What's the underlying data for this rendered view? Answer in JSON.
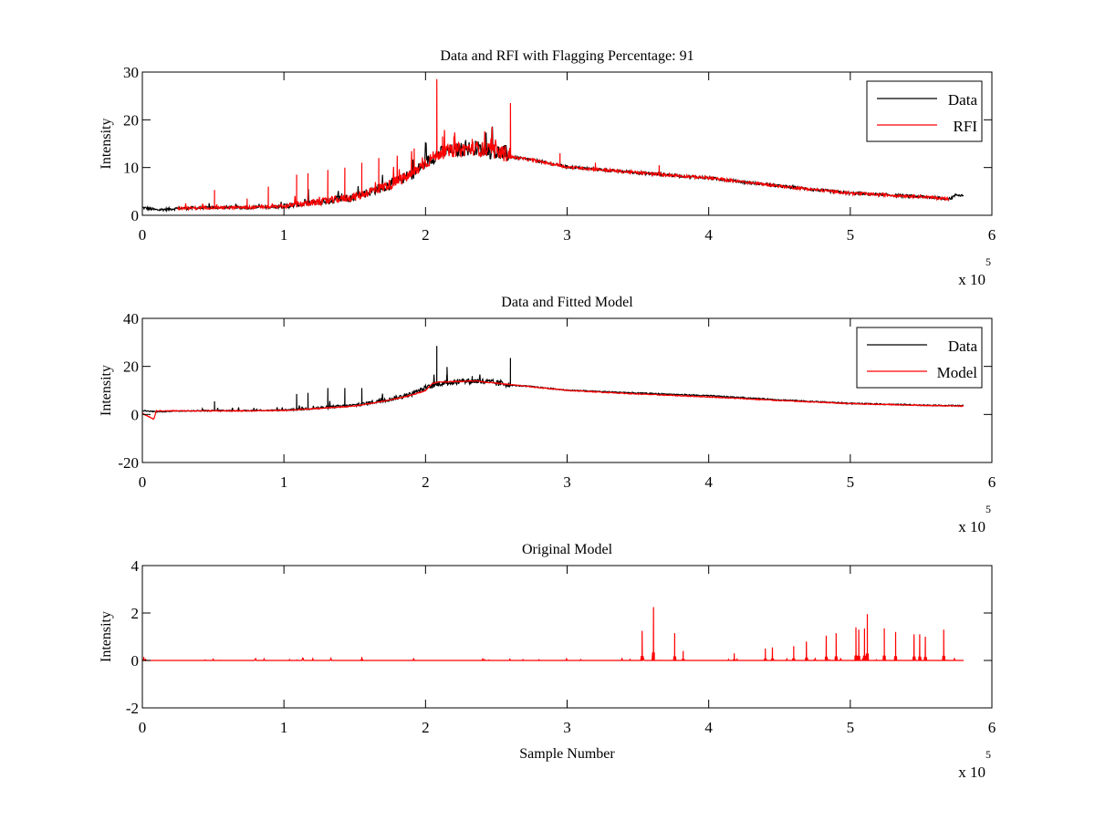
{
  "colors": {
    "data": "#000000",
    "rfi": "#ff0000",
    "model": "#ff0000",
    "axis": "#000000",
    "background": "#ffffff"
  },
  "chart_data": [
    {
      "type": "line",
      "title": "Data and RFI with Flagging Percentage: 91",
      "xlabel": "",
      "ylabel": "Intensity",
      "xlim": [
        0,
        6
      ],
      "ylim": [
        0,
        30
      ],
      "x_multiplier": "x 10",
      "x_multiplier_exp": "5",
      "xticks": [
        "0",
        "1",
        "2",
        "3",
        "4",
        "5",
        "6"
      ],
      "yticks": [
        "0",
        "10",
        "20",
        "30"
      ],
      "ytick_values": [
        0,
        10,
        20,
        30
      ],
      "legend": {
        "position": "top-right",
        "entries": [
          "Data",
          "RFI"
        ]
      },
      "series": [
        {
          "name": "Data",
          "color": "#000000",
          "x": [
            0,
            0.1,
            0.25,
            0.5,
            0.75,
            1.0,
            1.25,
            1.5,
            1.75,
            1.9,
            2.0,
            2.1,
            2.2,
            2.35,
            2.5,
            2.75,
            3.0,
            3.5,
            4.0,
            4.5,
            5.0,
            5.5,
            5.7,
            5.75,
            5.8
          ],
          "y": [
            1.5,
            1.0,
            1.3,
            1.5,
            1.5,
            1.7,
            2.5,
            3.5,
            6.0,
            8.0,
            10.5,
            12.5,
            13.0,
            13.5,
            12.5,
            11.5,
            10.0,
            8.8,
            7.7,
            6.0,
            4.5,
            3.8,
            3.3,
            4.2,
            4.0
          ]
        },
        {
          "name": "RFI",
          "color": "#ff0000",
          "x": [
            0.25,
            0.5,
            0.75,
            1.0,
            1.25,
            1.5,
            1.75,
            1.9,
            2.0,
            2.1,
            2.2,
            2.35,
            2.5,
            2.75,
            3.0,
            3.5,
            4.0,
            4.5,
            5.0,
            5.5,
            5.7
          ],
          "y": [
            1.3,
            1.5,
            1.5,
            1.7,
            2.5,
            3.5,
            6.0,
            8.0,
            10.5,
            12.5,
            13.0,
            13.5,
            12.5,
            11.5,
            10.0,
            8.8,
            7.7,
            6.0,
            4.5,
            3.8,
            3.3
          ],
          "peaks_x": [
            0.51,
            0.74,
            0.89,
            1.09,
            1.17,
            1.31,
            1.43,
            1.55,
            1.67,
            1.8,
            1.92,
            2.08,
            2.12,
            2.2,
            2.33,
            2.6,
            2.95,
            3.2,
            3.65
          ],
          "peaks_y": [
            5.3,
            3.5,
            6.0,
            8.5,
            8.8,
            9.5,
            10.0,
            11.0,
            12.0,
            12.5,
            14.0,
            28.5,
            16.5,
            16.5,
            16.0,
            23.5,
            13.0,
            11.0,
            10.5
          ]
        }
      ]
    },
    {
      "type": "line",
      "title": "Data and Fitted Model",
      "xlabel": "",
      "ylabel": "Intensity",
      "xlim": [
        0,
        6
      ],
      "ylim": [
        -20,
        40
      ],
      "x_multiplier": "x 10",
      "x_multiplier_exp": "5",
      "xticks": [
        "0",
        "1",
        "2",
        "3",
        "4",
        "5",
        "6"
      ],
      "yticks": [
        "-20",
        "0",
        "20",
        "40"
      ],
      "ytick_values": [
        -20,
        0,
        20,
        40
      ],
      "legend": {
        "position": "top-right",
        "entries": [
          "Data",
          "Model"
        ]
      },
      "series": [
        {
          "name": "Data",
          "color": "#000000",
          "x": [
            0,
            0.1,
            0.25,
            0.5,
            0.75,
            1.0,
            1.25,
            1.5,
            1.75,
            1.9,
            2.0,
            2.1,
            2.2,
            2.35,
            2.5,
            2.75,
            3.0,
            3.5,
            4.0,
            4.5,
            5.0,
            5.5,
            5.8
          ],
          "y": [
            1.5,
            1.0,
            1.3,
            1.5,
            1.5,
            1.7,
            2.5,
            3.5,
            6.0,
            8.0,
            10.5,
            12.5,
            13.0,
            13.5,
            12.5,
            11.5,
            10.0,
            8.8,
            7.7,
            6.0,
            4.5,
            3.8,
            3.5
          ],
          "peaks_x": [
            0.51,
            1.09,
            1.17,
            1.31,
            1.43,
            1.55,
            2.08,
            2.15,
            2.33,
            2.6
          ],
          "peaks_y": [
            5.5,
            8.5,
            9.0,
            11.0,
            11.0,
            11.0,
            28.5,
            16.5,
            16.0,
            23.5
          ]
        },
        {
          "name": "Model",
          "color": "#ff0000",
          "x": [
            0,
            0.08,
            0.1,
            0.25,
            0.5,
            0.75,
            1.0,
            1.25,
            1.5,
            1.75,
            1.9,
            2.0,
            2.05,
            2.1,
            2.35,
            2.5,
            2.75,
            3.0,
            3.5,
            4.0,
            4.5,
            5.0,
            5.5,
            5.8
          ],
          "y": [
            0.5,
            -2.0,
            1.5,
            1.5,
            1.5,
            1.5,
            1.7,
            2.5,
            3.5,
            6.0,
            8.0,
            10.0,
            13.0,
            13.5,
            14.0,
            13.0,
            11.5,
            10.0,
            8.5,
            7.3,
            5.8,
            4.5,
            3.8,
            3.5
          ]
        }
      ]
    },
    {
      "type": "line",
      "title": "Original Model",
      "xlabel": "Sample Number",
      "ylabel": "Intensity",
      "xlim": [
        0,
        6
      ],
      "ylim": [
        -2,
        4
      ],
      "x_multiplier": "x 10",
      "x_multiplier_exp": "5",
      "xticks": [
        "0",
        "1",
        "2",
        "3",
        "4",
        "5",
        "6"
      ],
      "yticks": [
        "-2",
        "0",
        "2",
        "4"
      ],
      "ytick_values": [
        -2,
        0,
        2,
        4
      ],
      "legend": null,
      "series": [
        {
          "name": "Original Model",
          "color": "#ff0000",
          "x": [
            0,
            5.8
          ],
          "y": [
            0,
            0
          ],
          "peaks_x": [
            0.01,
            1.55,
            3.53,
            3.61,
            3.76,
            3.82,
            4.18,
            4.4,
            4.45,
            4.6,
            4.69,
            4.83,
            4.9,
            5.04,
            5.06,
            5.1,
            5.12,
            5.24,
            5.32,
            5.45,
            5.49,
            5.53,
            5.66
          ],
          "peaks_y": [
            0.15,
            0.15,
            1.25,
            2.25,
            1.15,
            0.4,
            0.3,
            0.5,
            0.55,
            0.6,
            0.8,
            1.05,
            1.15,
            1.4,
            1.3,
            1.35,
            1.95,
            1.35,
            1.2,
            1.1,
            1.1,
            1.0,
            1.3
          ]
        }
      ]
    }
  ]
}
